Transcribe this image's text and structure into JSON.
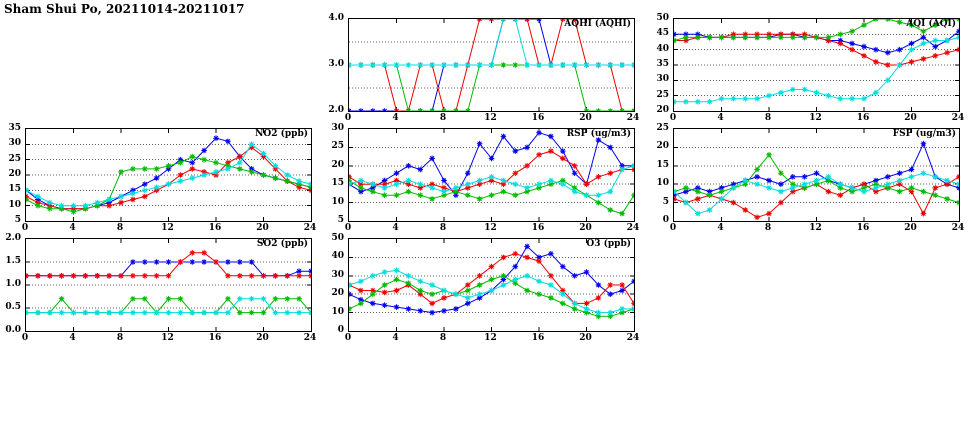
{
  "header": {
    "title": "Sham Shui Po, 20211014-20211017"
  },
  "colors": {
    "blue": "#0000ee",
    "red": "#ee0000",
    "green": "#00bb00",
    "cyan": "#00dddd",
    "grid": "#606060",
    "axis": "#000000"
  },
  "chart_data": [
    {
      "type": "line",
      "title": "AQHI (AQHI)",
      "xlabel": "",
      "ylabel": "",
      "xlim": [
        0,
        24
      ],
      "xticks": [
        0,
        4,
        8,
        12,
        16,
        20,
        24
      ],
      "ylim": [
        2,
        4
      ],
      "yticks": [
        "2.0",
        "3.0",
        "4.0"
      ],
      "ygrid_minor": [
        2.5,
        3.5
      ],
      "x": [
        0,
        1,
        2,
        3,
        4,
        5,
        6,
        7,
        8,
        9,
        10,
        11,
        12,
        13,
        14,
        15,
        16,
        17,
        18,
        19,
        20,
        21,
        22,
        23,
        24
      ],
      "series": [
        {
          "name": "blue",
          "color": "#0000ee",
          "values": [
            2,
            2,
            2,
            2,
            2,
            2,
            2,
            2,
            3,
            3,
            3,
            3,
            3,
            4,
            4,
            4,
            4,
            3,
            3,
            3,
            3,
            3,
            3,
            3,
            3
          ]
        },
        {
          "name": "red",
          "color": "#ee0000",
          "values": [
            3,
            3,
            3,
            3,
            2,
            2,
            3,
            3,
            2,
            2,
            3,
            4,
            4,
            4,
            4,
            4,
            3,
            3,
            4,
            4,
            3,
            3,
            3,
            2,
            2
          ]
        },
        {
          "name": "green",
          "color": "#00bb00",
          "values": [
            3,
            3,
            3,
            3,
            3,
            2,
            2,
            2,
            2,
            2,
            2,
            3,
            3,
            3,
            3,
            3,
            3,
            3,
            3,
            3,
            2,
            2,
            2,
            2,
            2
          ]
        },
        {
          "name": "cyan",
          "color": "#00dddd",
          "values": [
            3,
            3,
            3,
            3,
            3,
            3,
            3,
            3,
            3,
            3,
            3,
            3,
            3,
            4,
            4,
            3,
            3,
            3,
            3,
            3,
            3,
            3,
            3,
            3,
            3
          ]
        }
      ]
    },
    {
      "type": "line",
      "title": "AQI (AQI)",
      "xlabel": "",
      "ylabel": "",
      "xlim": [
        0,
        24
      ],
      "xticks": [
        0,
        4,
        8,
        12,
        16,
        20,
        24
      ],
      "ylim": [
        20,
        50
      ],
      "yticks": [
        "20",
        "25",
        "30",
        "35",
        "40",
        "45",
        "50"
      ],
      "x": [
        0,
        1,
        2,
        3,
        4,
        5,
        6,
        7,
        8,
        9,
        10,
        11,
        12,
        13,
        14,
        15,
        16,
        17,
        18,
        19,
        20,
        21,
        22,
        23,
        24
      ],
      "series": [
        {
          "name": "blue",
          "color": "#0000ee",
          "values": [
            45,
            45,
            45,
            44,
            44,
            44,
            44,
            44,
            44,
            45,
            45,
            44,
            44,
            43,
            43,
            42,
            41,
            40,
            39,
            40,
            42,
            44,
            41,
            43,
            46
          ]
        },
        {
          "name": "red",
          "color": "#ee0000",
          "values": [
            43,
            43,
            44,
            44,
            44,
            45,
            45,
            45,
            45,
            45,
            45,
            45,
            44,
            43,
            42,
            40,
            38,
            36,
            35,
            35,
            36,
            37,
            38,
            39,
            40
          ]
        },
        {
          "name": "green",
          "color": "#00bb00",
          "values": [
            43,
            44,
            44,
            44,
            44,
            44,
            44,
            44,
            44,
            44,
            44,
            44,
            44,
            44,
            45,
            46,
            48,
            50,
            50,
            49,
            48,
            46,
            48,
            50,
            50
          ]
        },
        {
          "name": "cyan",
          "color": "#00dddd",
          "values": [
            23,
            23,
            23,
            23,
            24,
            24,
            24,
            24,
            25,
            26,
            27,
            27,
            26,
            25,
            24,
            24,
            24,
            26,
            30,
            35,
            40,
            42,
            43,
            43,
            44
          ]
        }
      ]
    },
    {
      "type": "line",
      "title": "NO2 (ppb)",
      "xlabel": "",
      "ylabel": "",
      "xlim": [
        0,
        24
      ],
      "xticks": [
        0,
        4,
        8,
        12,
        16,
        20,
        24
      ],
      "ylim": [
        5,
        35
      ],
      "yticks": [
        "5",
        "10",
        "15",
        "20",
        "25",
        "30",
        "35"
      ],
      "x": [
        0,
        1,
        2,
        3,
        4,
        5,
        6,
        7,
        8,
        9,
        10,
        11,
        12,
        13,
        14,
        15,
        16,
        17,
        18,
        19,
        20,
        21,
        22,
        23,
        24
      ],
      "series": [
        {
          "name": "blue",
          "color": "#0000ee",
          "values": [
            15,
            12,
            10,
            9,
            9,
            9,
            10,
            11,
            13,
            15,
            17,
            19,
            22,
            25,
            24,
            28,
            32,
            31,
            26,
            22,
            20,
            19,
            18,
            17,
            16
          ]
        },
        {
          "name": "red",
          "color": "#ee0000",
          "values": [
            13,
            11,
            10,
            9,
            9,
            9,
            10,
            10,
            11,
            12,
            13,
            15,
            17,
            20,
            22,
            21,
            20,
            24,
            26,
            29,
            26,
            22,
            18,
            16,
            15
          ]
        },
        {
          "name": "green",
          "color": "#00bb00",
          "values": [
            12,
            10,
            9,
            9,
            8,
            9,
            10,
            12,
            21,
            22,
            22,
            22,
            23,
            24,
            26,
            25,
            24,
            23,
            22,
            21,
            20,
            19,
            18,
            17,
            16
          ]
        },
        {
          "name": "cyan",
          "color": "#00dddd",
          "values": [
            15,
            13,
            11,
            10,
            10,
            10,
            11,
            12,
            13,
            14,
            15,
            16,
            17,
            18,
            19,
            20,
            21,
            22,
            24,
            30,
            27,
            23,
            20,
            18,
            17
          ]
        }
      ]
    },
    {
      "type": "line",
      "title": "RSP (ug/m3)",
      "xlabel": "",
      "ylabel": "",
      "xlim": [
        0,
        24
      ],
      "xticks": [
        0,
        4,
        8,
        12,
        16,
        20,
        24
      ],
      "ylim": [
        5,
        30
      ],
      "yticks": [
        "5",
        "10",
        "15",
        "20",
        "25",
        "30"
      ],
      "x": [
        0,
        1,
        2,
        3,
        4,
        5,
        6,
        7,
        8,
        9,
        10,
        11,
        12,
        13,
        14,
        15,
        16,
        17,
        18,
        19,
        20,
        21,
        22,
        23,
        24
      ],
      "series": [
        {
          "name": "blue",
          "color": "#0000ee",
          "values": [
            15,
            13,
            14,
            16,
            18,
            20,
            19,
            22,
            16,
            12,
            18,
            26,
            22,
            28,
            24,
            25,
            29,
            28,
            24,
            18,
            15,
            27,
            25,
            20,
            20
          ]
        },
        {
          "name": "red",
          "color": "#ee0000",
          "values": [
            17,
            15,
            15,
            15,
            16,
            15,
            14,
            15,
            14,
            13,
            14,
            15,
            16,
            15,
            18,
            20,
            23,
            24,
            22,
            20,
            15,
            17,
            18,
            19,
            19
          ]
        },
        {
          "name": "green",
          "color": "#00bb00",
          "values": [
            16,
            14,
            13,
            12,
            12,
            13,
            12,
            11,
            12,
            13,
            12,
            11,
            12,
            13,
            12,
            13,
            14,
            15,
            16,
            14,
            12,
            10,
            8,
            7,
            12
          ]
        },
        {
          "name": "cyan",
          "color": "#00dddd",
          "values": [
            15,
            16,
            15,
            14,
            15,
            16,
            15,
            14,
            13,
            14,
            15,
            16,
            17,
            16,
            15,
            14,
            15,
            16,
            15,
            13,
            12,
            12,
            13,
            19,
            20
          ]
        }
      ]
    },
    {
      "type": "line",
      "title": "FSP (ug/m3)",
      "xlabel": "",
      "ylabel": "",
      "xlim": [
        0,
        24
      ],
      "xticks": [
        0,
        4,
        8,
        12,
        16,
        20,
        24
      ],
      "ylim": [
        0,
        25
      ],
      "yticks": [
        "0",
        "5",
        "10",
        "15",
        "20",
        "25"
      ],
      "x": [
        0,
        1,
        2,
        3,
        4,
        5,
        6,
        7,
        8,
        9,
        10,
        11,
        12,
        13,
        14,
        15,
        16,
        17,
        18,
        19,
        20,
        21,
        22,
        23,
        24
      ],
      "series": [
        {
          "name": "blue",
          "color": "#0000ee",
          "values": [
            7,
            8,
            9,
            8,
            9,
            10,
            11,
            12,
            11,
            10,
            12,
            12,
            13,
            11,
            10,
            9,
            10,
            11,
            12,
            13,
            14,
            21,
            12,
            10,
            9
          ]
        },
        {
          "name": "red",
          "color": "#ee0000",
          "values": [
            6,
            5,
            6,
            7,
            6,
            5,
            3,
            1,
            2,
            5,
            8,
            9,
            10,
            8,
            7,
            9,
            10,
            8,
            9,
            10,
            8,
            2,
            9,
            10,
            12
          ]
        },
        {
          "name": "green",
          "color": "#00bb00",
          "values": [
            8,
            9,
            8,
            7,
            8,
            9,
            10,
            14,
            18,
            13,
            10,
            9,
            10,
            11,
            9,
            8,
            9,
            10,
            9,
            8,
            9,
            8,
            7,
            6,
            5
          ]
        },
        {
          "name": "cyan",
          "color": "#00dddd",
          "values": [
            8,
            5,
            2,
            3,
            6,
            9,
            11,
            10,
            9,
            8,
            9,
            10,
            11,
            12,
            10,
            9,
            8,
            9,
            10,
            11,
            12,
            13,
            12,
            11,
            10
          ]
        }
      ]
    },
    {
      "type": "line",
      "title": "SO2 (ppb)",
      "xlabel": "",
      "ylabel": "",
      "xlim": [
        0,
        24
      ],
      "xticks": [
        0,
        4,
        8,
        12,
        16,
        20,
        24
      ],
      "ylim": [
        0,
        2
      ],
      "yticks": [
        "0.0",
        "0.5",
        "1.0",
        "1.5",
        "2.0"
      ],
      "x": [
        0,
        1,
        2,
        3,
        4,
        5,
        6,
        7,
        8,
        9,
        10,
        11,
        12,
        13,
        14,
        15,
        16,
        17,
        18,
        19,
        20,
        21,
        22,
        23,
        24
      ],
      "series": [
        {
          "name": "blue",
          "color": "#0000ee",
          "values": [
            1.2,
            1.2,
            1.2,
            1.2,
            1.2,
            1.2,
            1.2,
            1.2,
            1.2,
            1.5,
            1.5,
            1.5,
            1.5,
            1.5,
            1.5,
            1.5,
            1.5,
            1.5,
            1.5,
            1.5,
            1.2,
            1.2,
            1.2,
            1.3,
            1.3
          ]
        },
        {
          "name": "red",
          "color": "#ee0000",
          "values": [
            1.2,
            1.2,
            1.2,
            1.2,
            1.2,
            1.2,
            1.2,
            1.2,
            1.2,
            1.2,
            1.2,
            1.2,
            1.2,
            1.5,
            1.7,
            1.7,
            1.5,
            1.2,
            1.2,
            1.2,
            1.2,
            1.2,
            1.2,
            1.2,
            1.2
          ]
        },
        {
          "name": "green",
          "color": "#00bb00",
          "values": [
            0.4,
            0.4,
            0.4,
            0.7,
            0.4,
            0.4,
            0.4,
            0.4,
            0.4,
            0.7,
            0.7,
            0.4,
            0.7,
            0.7,
            0.4,
            0.4,
            0.4,
            0.7,
            0.4,
            0.4,
            0.4,
            0.7,
            0.7,
            0.7,
            0.4
          ]
        },
        {
          "name": "cyan",
          "color": "#00dddd",
          "values": [
            0.4,
            0.4,
            0.4,
            0.4,
            0.4,
            0.4,
            0.4,
            0.4,
            0.4,
            0.4,
            0.4,
            0.4,
            0.4,
            0.4,
            0.4,
            0.4,
            0.4,
            0.4,
            0.7,
            0.7,
            0.7,
            0.4,
            0.4,
            0.4,
            0.4
          ]
        }
      ]
    },
    {
      "type": "line",
      "title": "O3 (ppb)",
      "xlabel": "",
      "ylabel": "",
      "xlim": [
        0,
        24
      ],
      "xticks": [
        0,
        4,
        8,
        12,
        16,
        20,
        24
      ],
      "ylim": [
        0,
        50
      ],
      "yticks": [
        "0",
        "10",
        "20",
        "30",
        "40",
        "50"
      ],
      "x": [
        0,
        1,
        2,
        3,
        4,
        5,
        6,
        7,
        8,
        9,
        10,
        11,
        12,
        13,
        14,
        15,
        16,
        17,
        18,
        19,
        20,
        21,
        22,
        23,
        24
      ],
      "series": [
        {
          "name": "blue",
          "color": "#0000ee",
          "values": [
            20,
            17,
            15,
            14,
            13,
            12,
            11,
            10,
            11,
            12,
            15,
            18,
            22,
            28,
            35,
            46,
            40,
            42,
            35,
            30,
            32,
            25,
            20,
            22,
            27
          ]
        },
        {
          "name": "red",
          "color": "#ee0000",
          "values": [
            25,
            22,
            22,
            21,
            22,
            25,
            20,
            15,
            18,
            20,
            25,
            30,
            35,
            40,
            42,
            40,
            38,
            30,
            22,
            15,
            15,
            18,
            25,
            25,
            15
          ]
        },
        {
          "name": "green",
          "color": "#00bb00",
          "values": [
            12,
            15,
            20,
            25,
            28,
            26,
            22,
            20,
            22,
            20,
            22,
            25,
            28,
            30,
            26,
            22,
            20,
            18,
            15,
            12,
            10,
            8,
            8,
            10,
            12
          ]
        },
        {
          "name": "cyan",
          "color": "#00dddd",
          "values": [
            25,
            27,
            30,
            32,
            33,
            30,
            27,
            25,
            22,
            20,
            18,
            20,
            22,
            25,
            28,
            30,
            27,
            25,
            20,
            15,
            12,
            10,
            10,
            12,
            12
          ]
        }
      ]
    }
  ]
}
